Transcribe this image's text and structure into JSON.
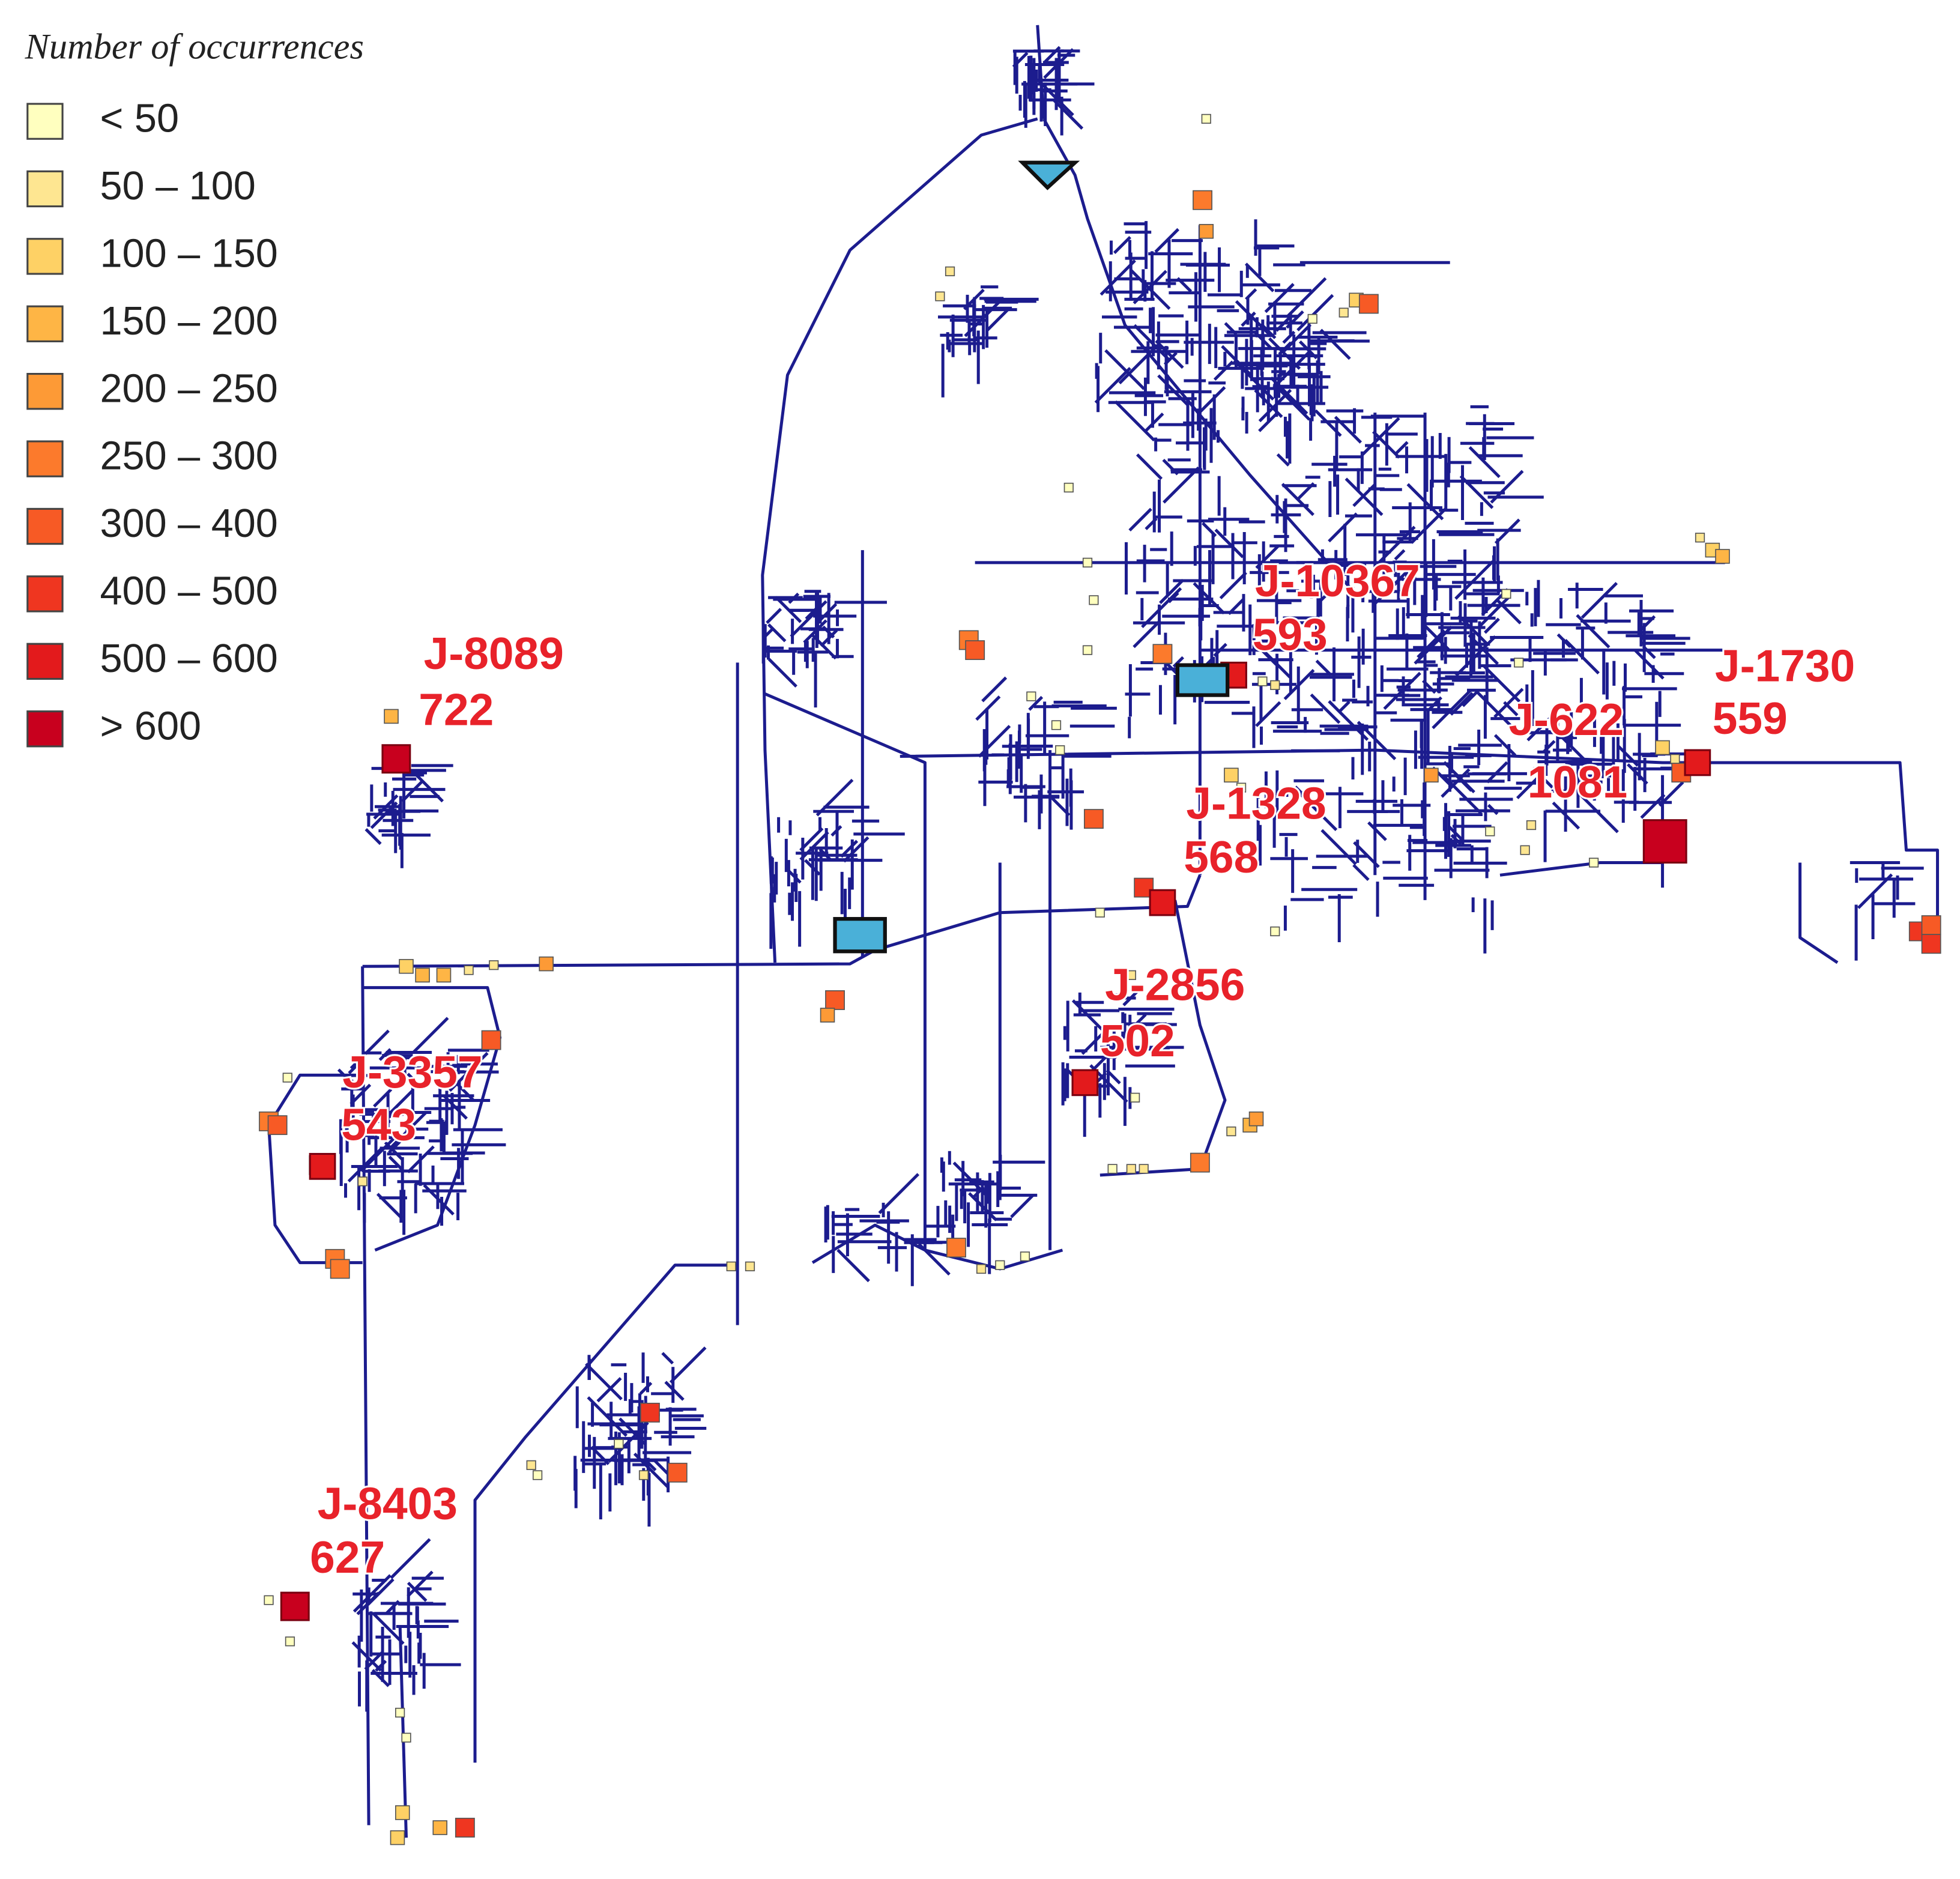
{
  "legend": {
    "title": "Number of occurrences",
    "items": [
      {
        "label": "< 50",
        "color": "#ffffbf"
      },
      {
        "label": "50 – 100",
        "color": "#fee691"
      },
      {
        "label": "100 – 150",
        "color": "#fed165"
      },
      {
        "label": "150 – 200",
        "color": "#feb545"
      },
      {
        "label": "200 – 250",
        "color": "#fd9a36"
      },
      {
        "label": "250 – 300",
        "color": "#fc7a2c"
      },
      {
        "label": "300 – 400",
        "color": "#f75a25"
      },
      {
        "label": "400 – 500",
        "color": "#ef3620"
      },
      {
        "label": "500 – 600",
        "color": "#e31a1c"
      },
      {
        "label": "> 600",
        "color": "#c8001e"
      }
    ]
  },
  "junctions": [
    {
      "id": "J-8089",
      "count": "722"
    },
    {
      "id": "J-10367",
      "count": "593"
    },
    {
      "id": "J-1730",
      "count": "559"
    },
    {
      "id": "J-622",
      "count": "1081"
    },
    {
      "id": "J-1328",
      "count": "568"
    },
    {
      "id": "J-2856",
      "count": "502"
    },
    {
      "id": "J-3357",
      "count": "543"
    },
    {
      "id": "J-8403",
      "count": "627"
    }
  ]
}
